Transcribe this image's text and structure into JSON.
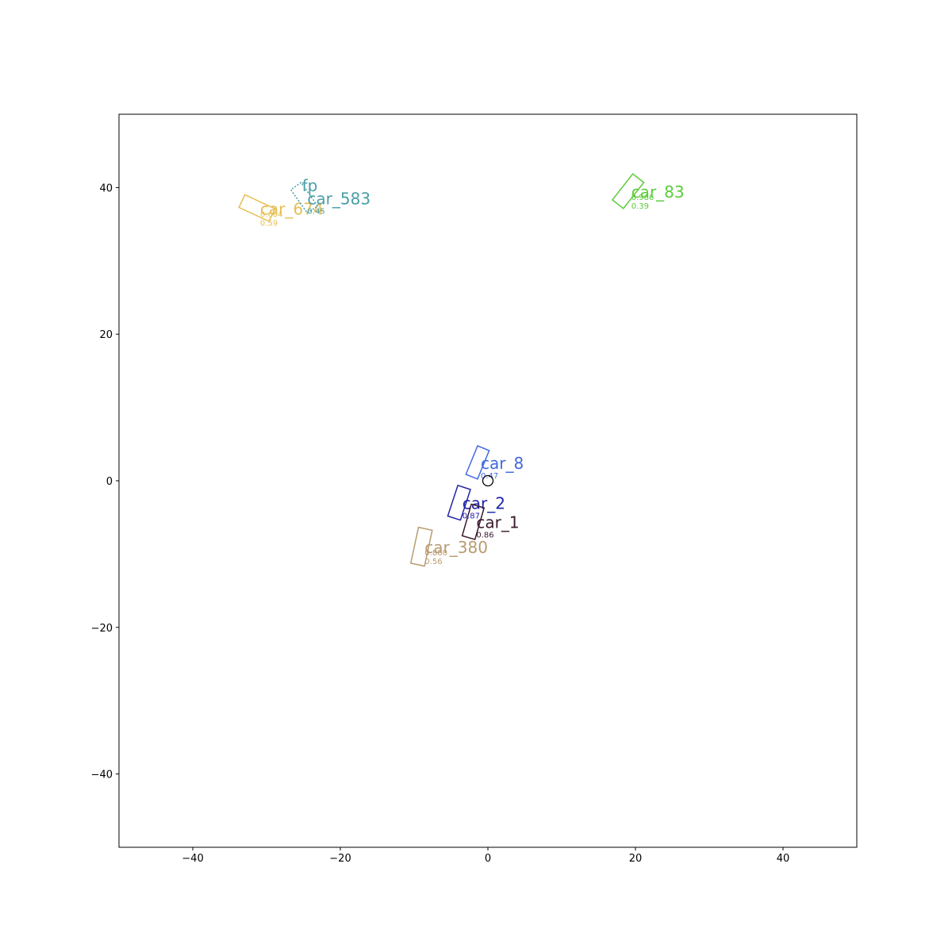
{
  "chart_data": {
    "type": "scatter",
    "title": "",
    "xlabel": "",
    "ylabel": "",
    "xlim": [
      -50,
      50
    ],
    "ylim": [
      -50,
      50
    ],
    "grid": false,
    "x_ticks": [
      -40,
      -20,
      0,
      20,
      40
    ],
    "y_ticks": [
      -40,
      -20,
      0,
      20,
      40
    ],
    "x_tick_labels": [
      "−40",
      "−20",
      "0",
      "20",
      "40"
    ],
    "y_tick_labels": [
      "−40",
      "−20",
      "0",
      "20",
      "40"
    ],
    "ego": {
      "x": 0,
      "y": 0,
      "radius": 0.7
    },
    "objects": [
      {
        "label": "car_8",
        "x": -1.4,
        "y": 2.5,
        "length": 4.2,
        "width": 1.7,
        "yaw_deg": 68,
        "color": "#4169e1",
        "style": "solid",
        "sub_labels": [
          "0.47"
        ]
      },
      {
        "label": "car_2",
        "x": -3.9,
        "y": -3.0,
        "length": 4.4,
        "width": 1.8,
        "yaw_deg": 72,
        "color": "#2024a8",
        "style": "solid",
        "sub_labels": [
          "0.87"
        ]
      },
      {
        "label": "car_1",
        "x": -2.0,
        "y": -5.6,
        "length": 4.5,
        "width": 1.8,
        "yaw_deg": 74,
        "color": "#3b1a2e",
        "style": "solid",
        "sub_labels": [
          "0.86"
        ]
      },
      {
        "label": "car_380",
        "x": -9.0,
        "y": -9.0,
        "length": 5.0,
        "width": 1.9,
        "yaw_deg": 78,
        "color": "#b89b70",
        "style": "solid",
        "sub_labels": [
          "0.880",
          "0.56"
        ]
      },
      {
        "label": "car_83",
        "x": 19.0,
        "y": 39.5,
        "length": 4.5,
        "width": 1.9,
        "yaw_deg": 52,
        "color": "#5ccc3a",
        "style": "solid",
        "sub_labels": [
          "0.986",
          "0.39"
        ]
      },
      {
        "label": "car_674",
        "x": -31.3,
        "y": 37.2,
        "length": 4.5,
        "width": 1.9,
        "yaw_deg": -25,
        "color": "#e6bf52",
        "style": "solid",
        "sub_labels": [
          "0.604",
          "0.59"
        ]
      },
      {
        "label": "car_583",
        "x": -24.9,
        "y": 38.6,
        "length": 3.9,
        "width": 1.7,
        "yaw_deg": -55,
        "color": "#4a9ea6",
        "style": "dotted",
        "sub_labels": [
          "0.45"
        ]
      }
    ],
    "annotations": [
      {
        "text": "fp",
        "x": -25.2,
        "y": 39.5,
        "color": "#4a9ea6"
      }
    ]
  }
}
